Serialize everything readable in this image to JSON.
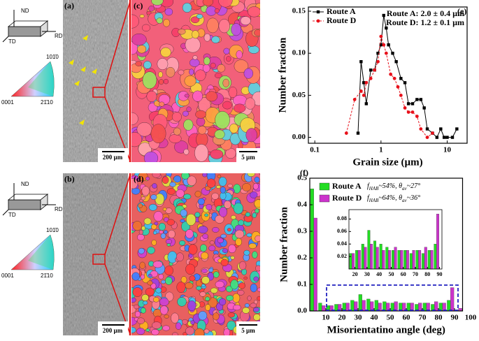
{
  "panel_labels": [
    "(a)",
    "(b)",
    "(c)",
    "(d)"
  ],
  "triads": [
    {
      "nd": "ND",
      "rd": "RD",
      "td": "TD"
    },
    {
      "nd": "ND",
      "rd": "RD",
      "td": "TD"
    }
  ],
  "ipf_keys": [
    {
      "top": "101̄0",
      "left": "0001",
      "right": "21̄10"
    },
    {
      "top": "101̄0",
      "left": "0001",
      "right": "21̄10"
    }
  ],
  "scale_bars": [
    "200 µm",
    "5 µm",
    "200 µm",
    "5 µm"
  ],
  "chart_data": [
    {
      "type": "line",
      "panel": "(e)",
      "xlabel": "Grain size (µm)",
      "ylabel": "Number fraction",
      "xscale": "log",
      "xlim": [
        0.08,
        20
      ],
      "ylim": [
        -0.007,
        0.155
      ],
      "xticks": [
        0.1,
        1,
        10
      ],
      "yticks": [
        {
          "value": 0,
          "label": "0.00"
        },
        0.05,
        {
          "value": 0.1,
          "label": "0.10"
        },
        0.15
      ],
      "annotations": [
        "Route A: 2.0 ± 0.4 µm",
        "Route D: 1.2 ± 0.1 µm"
      ],
      "series": [
        {
          "name": "Route A",
          "color": "#000000",
          "linestyle": "solid",
          "marker": "square",
          "x": [
            0.45,
            0.5,
            0.55,
            0.6,
            0.7,
            0.8,
            0.9,
            1.0,
            1.1,
            1.2,
            1.3,
            1.5,
            1.7,
            2.0,
            2.3,
            2.6,
            3.0,
            3.5,
            4.0,
            4.5,
            5.0,
            6,
            7,
            8,
            9,
            10,
            12,
            14
          ],
          "values": [
            0.005,
            0.09,
            0.065,
            0.04,
            0.08,
            0.08,
            0.1,
            0.11,
            0.145,
            0.13,
            0.11,
            0.1,
            0.09,
            0.07,
            0.065,
            0.04,
            0.04,
            0.045,
            0.045,
            0.035,
            0.01,
            0.005,
            0.0,
            0.01,
            0.0,
            0.0,
            0.0,
            0.01
          ]
        },
        {
          "name": "Route D",
          "color": "#e8101a",
          "linestyle": "dashed",
          "marker": "circle",
          "x": [
            0.3,
            0.4,
            0.5,
            0.55,
            0.6,
            0.7,
            0.8,
            0.9,
            1.0,
            1.1,
            1.2,
            1.4,
            1.6,
            1.8,
            2.0,
            2.3,
            2.6,
            3.0,
            3.5,
            4.0,
            5.0,
            6.0
          ],
          "values": [
            0.005,
            0.045,
            0.055,
            0.05,
            0.065,
            0.07,
            0.08,
            0.09,
            0.12,
            0.11,
            0.1,
            0.075,
            0.07,
            0.06,
            0.05,
            0.035,
            0.03,
            0.03,
            0.025,
            0.01,
            0.0,
            0.005
          ]
        }
      ]
    },
    {
      "type": "bar",
      "panel": "(f)",
      "xlabel": "Misorientatino angle (deg)",
      "ylabel": "Number fraction",
      "xlim": [
        0,
        95
      ],
      "ylim": [
        0,
        0.5
      ],
      "xticks": [
        10,
        20,
        30,
        40,
        50,
        60,
        70,
        80,
        90,
        100
      ],
      "yticks": [
        {
          "value": 0,
          "label": "0.0"
        },
        0.1,
        0.2,
        0.3,
        0.4,
        0.5
      ],
      "x": [
        2.5,
        7.5,
        12.5,
        17.5,
        22.5,
        27.5,
        32.5,
        37.5,
        42.5,
        47.5,
        52.5,
        57.5,
        62.5,
        67.5,
        72.5,
        77.5,
        82.5,
        87.5,
        92.5
      ],
      "series": [
        {
          "name": "Route A",
          "color": "#22dd22",
          "legend_note": {
            "f": "f",
            "f_sub": "HAB",
            "mid": "~54%, θ",
            "t_sub": "av",
            "end": "~27°"
          },
          "values": [
            0.46,
            0.03,
            0.02,
            0.025,
            0.03,
            0.04,
            0.062,
            0.045,
            0.04,
            0.035,
            0.03,
            0.03,
            0.03,
            0.025,
            0.03,
            0.025,
            0.03,
            0.04,
            0.004
          ]
        },
        {
          "name": "Route D",
          "color": "#cc33cc",
          "legend_note": {
            "f": "f",
            "f_sub": "HAB",
            "mid": "~64%, θ",
            "t_sub": "av",
            "end": "~36°"
          },
          "values": [
            0.35,
            0.02,
            0.02,
            0.025,
            0.03,
            0.035,
            0.04,
            0.035,
            0.03,
            0.03,
            0.035,
            0.03,
            0.03,
            0.03,
            0.03,
            0.035,
            0.03,
            0.088,
            0.01
          ]
        }
      ],
      "inset": {
        "xlim": [
          15,
          92
        ],
        "ylim": [
          0,
          0.095
        ],
        "xticks": [
          20,
          30,
          40,
          50,
          60,
          70,
          80,
          90
        ],
        "yticks": [
          0.02,
          0.04,
          0.06,
          0.08
        ]
      }
    }
  ]
}
